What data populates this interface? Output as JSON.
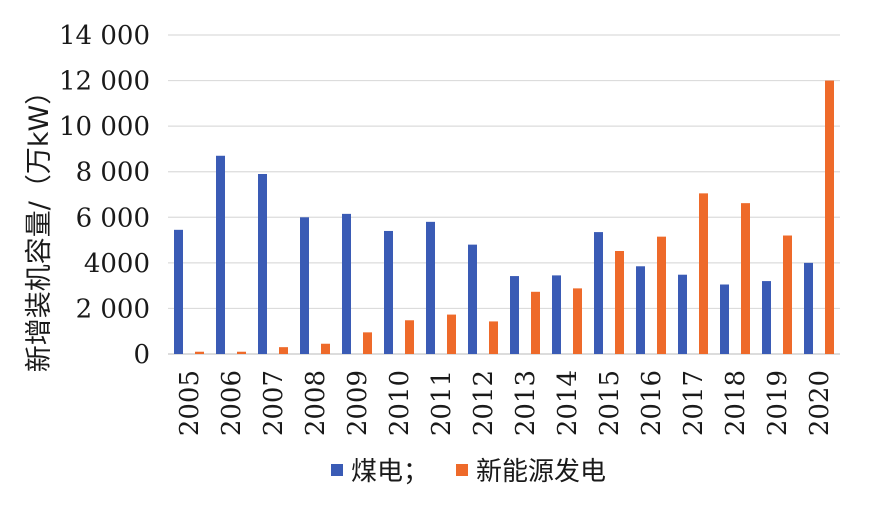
{
  "chart_data": {
    "type": "bar",
    "title": "",
    "xlabel": "",
    "ylabel": "新增装机容量/（万kW）",
    "ylim": [
      0,
      14000
    ],
    "yticks": [
      0,
      2000,
      4000,
      6000,
      8000,
      10000,
      12000,
      14000
    ],
    "ytick_labels": [
      "0",
      "2 000",
      "4000",
      "6 000",
      "8 000",
      "10 000",
      "12 000",
      "14 000"
    ],
    "grid": true,
    "legend_position": "bottom",
    "categories": [
      "2005",
      "2006",
      "2007",
      "2008",
      "2009",
      "2010",
      "2011",
      "2012",
      "2013",
      "2014",
      "2015",
      "2016",
      "2017",
      "2018",
      "2019",
      "2020"
    ],
    "series": [
      {
        "name": "煤电；",
        "color": "#3a5bb5",
        "values": [
          5450,
          8700,
          7900,
          6000,
          6150,
          5400,
          5800,
          4800,
          3420,
          3450,
          5350,
          3850,
          3480,
          3050,
          3200,
          4000
        ]
      },
      {
        "name": "新能源发电",
        "color": "#ee6a2a",
        "values": [
          100,
          100,
          300,
          450,
          950,
          1480,
          1730,
          1430,
          2730,
          2880,
          4520,
          5150,
          7050,
          6620,
          5200,
          12000
        ]
      }
    ]
  }
}
